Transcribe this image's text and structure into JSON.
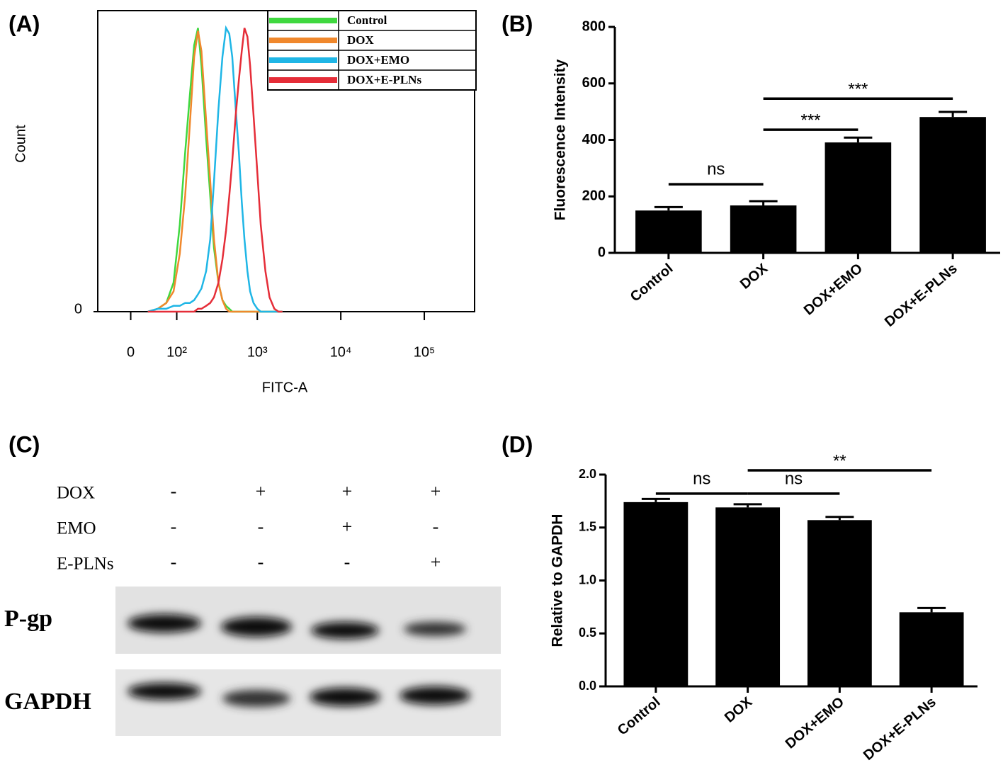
{
  "chart_data": [
    {
      "type": "line",
      "label": "(A)",
      "xlabel": "FITC-A",
      "ylabel": "Count",
      "xscale": "biexponential",
      "xlim": [
        -60,
        400000
      ],
      "xticks": [
        0,
        {
          "value": 100,
          "label": "10²"
        },
        {
          "value": 1000,
          "label": "10³"
        },
        {
          "value": 10000,
          "label": "10⁴"
        },
        {
          "value": 100000,
          "label": "10⁵"
        }
      ],
      "ylim": [
        0,
        104
      ],
      "yticks": [
        0
      ],
      "legend": "upper right",
      "x": [
        30,
        50,
        70,
        90,
        110,
        130,
        150,
        170,
        190,
        210,
        240,
        270,
        300,
        340,
        380,
        420,
        460,
        500,
        550,
        600,
        650,
        700,
        760,
        820,
        900,
        1000,
        1100,
        1250,
        1400,
        1600,
        1800,
        2000
      ],
      "series": [
        {
          "name": "Control",
          "color": "#3fd83f",
          "values": [
            0,
            1,
            3,
            10,
            30,
            55,
            75,
            92,
            98,
            85,
            60,
            40,
            22,
            10,
            4,
            2,
            1,
            0,
            0,
            0,
            0,
            0,
            0,
            0,
            0,
            0,
            0,
            0,
            0,
            0,
            0,
            0
          ]
        },
        {
          "name": "DOX",
          "color": "#f0882c",
          "values": [
            0,
            1,
            3,
            7,
            20,
            40,
            65,
            88,
            97,
            90,
            66,
            45,
            25,
            10,
            4,
            1,
            0,
            0,
            0,
            0,
            0,
            0,
            0,
            0,
            0,
            0,
            0,
            0,
            0,
            0,
            0,
            0
          ]
        },
        {
          "name": "DOX+EMO",
          "color": "#1fb6e6",
          "values": [
            0,
            1,
            1,
            2,
            2,
            3,
            3,
            4,
            6,
            8,
            14,
            25,
            45,
            70,
            88,
            98,
            96,
            88,
            70,
            55,
            38,
            25,
            14,
            7,
            3,
            1,
            0,
            0,
            0,
            0,
            0,
            0
          ]
        },
        {
          "name": "DOX+E-PLNs",
          "color": "#e52d38",
          "values": [
            0,
            0,
            0,
            0,
            0,
            0,
            0,
            0,
            1,
            1,
            2,
            3,
            5,
            10,
            18,
            28,
            40,
            52,
            68,
            80,
            90,
            98,
            95,
            85,
            68,
            48,
            30,
            14,
            5,
            1,
            0,
            0
          ]
        }
      ]
    },
    {
      "type": "bar",
      "label": "(B)",
      "ylabel": "Fluorescence Intensity",
      "color": "#000000",
      "categories": [
        "Control",
        "DOX",
        "DOX+EMO",
        "DOX+E-PLNs"
      ],
      "values": [
        150,
        168,
        391,
        481
      ],
      "errors": [
        12,
        15,
        17,
        18
      ],
      "ylim": [
        0,
        800
      ],
      "yticks": [
        0,
        200,
        400,
        600,
        800
      ],
      "annotations": [
        {
          "text": "ns",
          "between": [
            0,
            1
          ],
          "y": 243
        },
        {
          "text": "***",
          "between": [
            1,
            2
          ],
          "y": 436
        },
        {
          "text": "***",
          "between": [
            1,
            3
          ],
          "y": 546
        }
      ]
    },
    {
      "type": "bar",
      "label": "(D)",
      "ylabel": "Relative to GAPDH",
      "color": "#000000",
      "categories": [
        "Control",
        "DOX",
        "DOX+EMO",
        "DOX+E-PLNs"
      ],
      "values": [
        1.74,
        1.69,
        1.57,
        0.7
      ],
      "errors": [
        0.03,
        0.03,
        0.03,
        0.04
      ],
      "ylim": [
        0,
        2
      ],
      "yticks": [
        {
          "value": 0,
          "label": "0.0"
        },
        0.5,
        {
          "value": 1,
          "label": "1.0"
        },
        1.5,
        {
          "value": 2,
          "label": "2.0"
        }
      ],
      "annotations": [
        {
          "text": "ns",
          "between": [
            0,
            1
          ],
          "y": 1.82
        },
        {
          "text": "ns",
          "between": [
            1,
            2
          ],
          "y": 1.82
        },
        {
          "text": "**",
          "between": [
            1,
            3
          ],
          "y": 2.04
        }
      ]
    }
  ],
  "blot": {
    "label": "(C)",
    "treatments": [
      {
        "name": "DOX",
        "lanes": [
          "-",
          "+",
          "+",
          "+"
        ]
      },
      {
        "name": "EMO",
        "lanes": [
          "-",
          "-",
          "+",
          "-"
        ]
      },
      {
        "name": "E-PLNs",
        "lanes": [
          "-",
          "-",
          "-",
          "+"
        ]
      }
    ],
    "bands": [
      "P-gp",
      "GAPDH"
    ]
  }
}
